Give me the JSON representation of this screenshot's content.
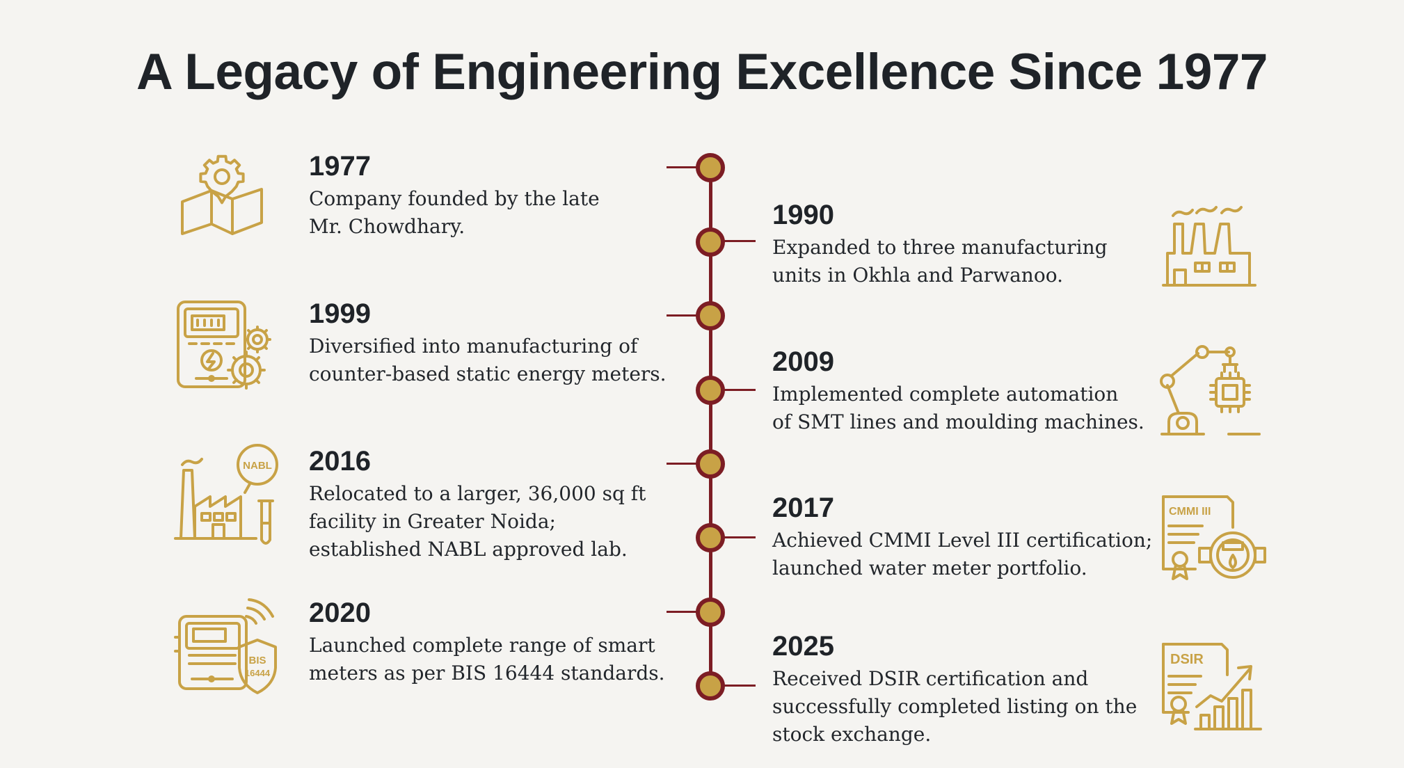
{
  "title": "A Legacy of Engineering Excellence Since 1977",
  "colors": {
    "accent_gold": "#c8a246",
    "axis_maroon": "#7c1d24",
    "text": "#1f2328",
    "background": "#f5f4f1"
  },
  "events": [
    {
      "year": "1977",
      "description": "Company founded by the late\nMr. Chowdhary.",
      "side": "left",
      "icon": "location-gear-map-icon"
    },
    {
      "year": "1990",
      "description": "Expanded to three manufacturing\nunits in Okhla and Parwanoo.",
      "side": "right",
      "icon": "factory-icon"
    },
    {
      "year": "1999",
      "description": "Diversified into manufacturing of\ncounter-based static energy meters.",
      "side": "left",
      "icon": "energy-meter-gears-icon"
    },
    {
      "year": "2009",
      "description": "Implemented complete automation\nof SMT lines and moulding machines.",
      "side": "right",
      "icon": "robot-arm-chip-icon"
    },
    {
      "year": "2016",
      "description": "Relocated to a larger, 36,000 sq ft\nfacility in Greater Noida;\nestablished NABL approved lab.",
      "side": "left",
      "icon": "factory-nabl-lab-icon",
      "icon_label": "NABL"
    },
    {
      "year": "2017",
      "description": "Achieved CMMI Level III certification;\nlaunched water meter portfolio.",
      "side": "right",
      "icon": "certificate-water-meter-icon",
      "icon_label": "CMMI III"
    },
    {
      "year": "2020",
      "description": "Launched complete range of smart\nmeters as per BIS 16444 standards.",
      "side": "left",
      "icon": "smart-meter-shield-icon",
      "icon_label_line1": "BIS",
      "icon_label_line2": "16444"
    },
    {
      "year": "2025",
      "description": "Received DSIR certification and\nsuccessfully completed listing on the\nstock exchange.",
      "side": "right",
      "icon": "certificate-growth-chart-icon",
      "icon_label": "DSIR"
    }
  ]
}
